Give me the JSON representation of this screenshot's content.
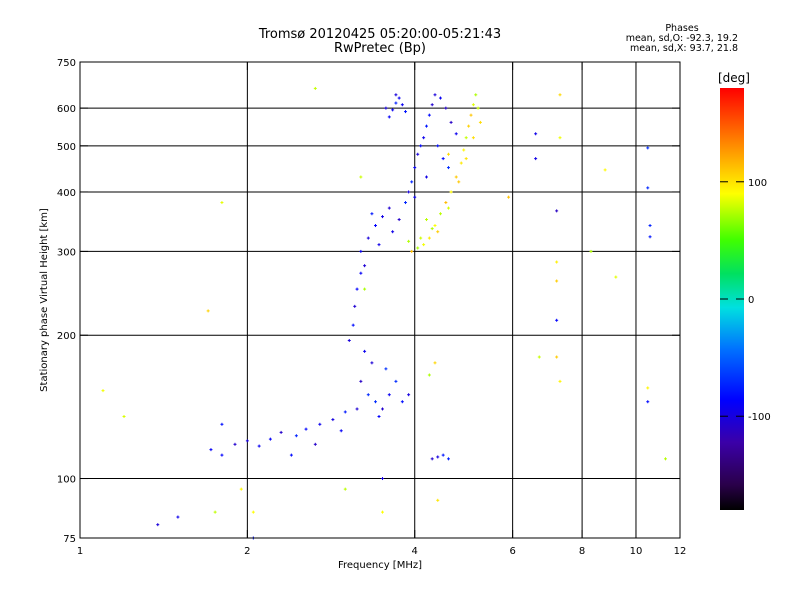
{
  "header": {
    "title": "Tromsø 20120425 05:20:00-05:21:43",
    "subtitle": "RwPretec (Bp)"
  },
  "phases": {
    "title": "Phases",
    "line_o": "mean, sd,O: -92.3, 19.2",
    "line_x": "mean, sd,X:  93.7, 21.8"
  },
  "colorbar": {
    "label": "[deg]",
    "ticks": [
      {
        "value": 100,
        "label": "100"
      },
      {
        "value": 0,
        "label": "0"
      },
      {
        "value": -100,
        "label": "-100"
      }
    ],
    "range": [
      -180,
      180
    ]
  },
  "chart_data": {
    "type": "scatter",
    "xlabel": "Frequency [MHz]",
    "ylabel": "Stationary phase Virtual Height [km]",
    "xscale": "log",
    "yscale": "log",
    "xlim": [
      1,
      12
    ],
    "ylim": [
      75,
      750
    ],
    "xticks": [
      {
        "value": 1,
        "label": "1"
      },
      {
        "value": 2,
        "label": "2"
      },
      {
        "value": 4,
        "label": "4"
      },
      {
        "value": 6,
        "label": "6"
      },
      {
        "value": 8,
        "label": "8"
      },
      {
        "value": 10,
        "label": "10"
      },
      {
        "value": 12,
        "label": "12"
      }
    ],
    "xgrid": [
      2,
      4,
      6,
      8,
      10
    ],
    "yticks": [
      {
        "value": 75,
        "label": "75"
      },
      {
        "value": 100,
        "label": "100"
      },
      {
        "value": 200,
        "label": "200"
      },
      {
        "value": 300,
        "label": "300"
      },
      {
        "value": 400,
        "label": "400"
      },
      {
        "value": 500,
        "label": "500"
      },
      {
        "value": 600,
        "label": "600"
      },
      {
        "value": 750,
        "label": "750"
      }
    ],
    "ygrid": [
      100,
      200,
      300,
      400,
      500,
      600
    ],
    "grid": true,
    "color_scale": "phase in degrees, rainbow from black (-180) through blue, cyan, green, yellow to red (+180)",
    "series": [
      {
        "mode": "O",
        "mean_phase": -92.3,
        "sd_phase": 19.2,
        "points": [
          {
            "x": 1.72,
            "y": 115
          },
          {
            "x": 1.8,
            "y": 112
          },
          {
            "x": 1.9,
            "y": 118
          },
          {
            "x": 2.0,
            "y": 120
          },
          {
            "x": 2.1,
            "y": 117
          },
          {
            "x": 2.2,
            "y": 121
          },
          {
            "x": 2.3,
            "y": 125
          },
          {
            "x": 2.45,
            "y": 123
          },
          {
            "x": 2.55,
            "y": 127
          },
          {
            "x": 2.7,
            "y": 130
          },
          {
            "x": 2.85,
            "y": 133
          },
          {
            "x": 3.0,
            "y": 138
          },
          {
            "x": 2.4,
            "y": 112
          },
          {
            "x": 2.65,
            "y": 118
          },
          {
            "x": 2.95,
            "y": 126
          },
          {
            "x": 3.05,
            "y": 195
          },
          {
            "x": 3.1,
            "y": 210
          },
          {
            "x": 3.12,
            "y": 230
          },
          {
            "x": 3.15,
            "y": 250
          },
          {
            "x": 3.2,
            "y": 270
          },
          {
            "x": 3.25,
            "y": 280
          },
          {
            "x": 3.2,
            "y": 160
          },
          {
            "x": 3.3,
            "y": 150
          },
          {
            "x": 3.4,
            "y": 145
          },
          {
            "x": 3.5,
            "y": 140
          },
          {
            "x": 3.6,
            "y": 150
          },
          {
            "x": 3.7,
            "y": 160
          },
          {
            "x": 3.35,
            "y": 175
          },
          {
            "x": 3.25,
            "y": 185
          },
          {
            "x": 3.45,
            "y": 135
          },
          {
            "x": 3.8,
            "y": 145
          },
          {
            "x": 3.9,
            "y": 150
          },
          {
            "x": 3.15,
            "y": 140
          },
          {
            "x": 3.55,
            "y": 170
          },
          {
            "x": 3.2,
            "y": 300
          },
          {
            "x": 3.3,
            "y": 320
          },
          {
            "x": 3.4,
            "y": 340
          },
          {
            "x": 3.5,
            "y": 355
          },
          {
            "x": 3.6,
            "y": 370
          },
          {
            "x": 3.35,
            "y": 360
          },
          {
            "x": 3.45,
            "y": 310
          },
          {
            "x": 3.65,
            "y": 330
          },
          {
            "x": 3.75,
            "y": 350
          },
          {
            "x": 3.85,
            "y": 380
          },
          {
            "x": 3.9,
            "y": 400
          },
          {
            "x": 3.95,
            "y": 420
          },
          {
            "x": 4.0,
            "y": 450
          },
          {
            "x": 4.05,
            "y": 480
          },
          {
            "x": 4.1,
            "y": 500
          },
          {
            "x": 4.15,
            "y": 520
          },
          {
            "x": 4.2,
            "y": 550
          },
          {
            "x": 4.25,
            "y": 580
          },
          {
            "x": 4.3,
            "y": 610
          },
          {
            "x": 4.35,
            "y": 640
          },
          {
            "x": 4.45,
            "y": 630
          },
          {
            "x": 4.55,
            "y": 600
          },
          {
            "x": 4.65,
            "y": 560
          },
          {
            "x": 4.75,
            "y": 530
          },
          {
            "x": 4.4,
            "y": 500
          },
          {
            "x": 4.5,
            "y": 470
          },
          {
            "x": 4.6,
            "y": 450
          },
          {
            "x": 4.2,
            "y": 430
          },
          {
            "x": 4.0,
            "y": 390
          },
          {
            "x": 3.6,
            "y": 575
          },
          {
            "x": 3.65,
            "y": 595
          },
          {
            "x": 3.7,
            "y": 615
          },
          {
            "x": 3.75,
            "y": 630
          },
          {
            "x": 3.8,
            "y": 610
          },
          {
            "x": 3.55,
            "y": 600
          },
          {
            "x": 3.7,
            "y": 640
          },
          {
            "x": 3.85,
            "y": 590
          },
          {
            "x": 4.3,
            "y": 110
          },
          {
            "x": 4.4,
            "y": 111
          },
          {
            "x": 4.5,
            "y": 112
          },
          {
            "x": 4.6,
            "y": 110
          },
          {
            "x": 10.5,
            "y": 495
          },
          {
            "x": 10.5,
            "y": 408
          },
          {
            "x": 10.6,
            "y": 340
          },
          {
            "x": 10.6,
            "y": 322
          },
          {
            "x": 10.5,
            "y": 145
          },
          {
            "x": 7.2,
            "y": 215
          },
          {
            "x": 7.2,
            "y": 365
          },
          {
            "x": 6.6,
            "y": 470
          },
          {
            "x": 6.6,
            "y": 530
          },
          {
            "x": 1.38,
            "y": 80
          },
          {
            "x": 1.5,
            "y": 83
          },
          {
            "x": 1.8,
            "y": 130
          },
          {
            "x": 2.05,
            "y": 75
          },
          {
            "x": 3.5,
            "y": 100
          }
        ]
      },
      {
        "mode": "X",
        "mean_phase": 93.7,
        "sd_phase": 21.8,
        "points": [
          {
            "x": 3.95,
            "y": 300
          },
          {
            "x": 4.05,
            "y": 305
          },
          {
            "x": 4.15,
            "y": 310
          },
          {
            "x": 4.25,
            "y": 320
          },
          {
            "x": 4.35,
            "y": 340
          },
          {
            "x": 4.45,
            "y": 360
          },
          {
            "x": 4.55,
            "y": 380
          },
          {
            "x": 4.65,
            "y": 400
          },
          {
            "x": 4.75,
            "y": 430
          },
          {
            "x": 4.85,
            "y": 460
          },
          {
            "x": 4.9,
            "y": 490
          },
          {
            "x": 4.95,
            "y": 520
          },
          {
            "x": 5.0,
            "y": 550
          },
          {
            "x": 5.05,
            "y": 580
          },
          {
            "x": 5.1,
            "y": 610
          },
          {
            "x": 5.15,
            "y": 640
          },
          {
            "x": 5.2,
            "y": 600
          },
          {
            "x": 5.25,
            "y": 560
          },
          {
            "x": 5.1,
            "y": 520
          },
          {
            "x": 4.95,
            "y": 470
          },
          {
            "x": 4.8,
            "y": 420
          },
          {
            "x": 4.6,
            "y": 370
          },
          {
            "x": 4.4,
            "y": 330
          },
          {
            "x": 4.1,
            "y": 320
          },
          {
            "x": 3.9,
            "y": 315
          },
          {
            "x": 4.2,
            "y": 350
          },
          {
            "x": 4.3,
            "y": 335
          },
          {
            "x": 7.2,
            "y": 285
          },
          {
            "x": 7.2,
            "y": 260
          },
          {
            "x": 7.2,
            "y": 180
          },
          {
            "x": 6.7,
            "y": 180
          },
          {
            "x": 7.3,
            "y": 160
          },
          {
            "x": 8.3,
            "y": 300
          },
          {
            "x": 9.2,
            "y": 265
          },
          {
            "x": 10.5,
            "y": 155
          },
          {
            "x": 11.3,
            "y": 110
          },
          {
            "x": 1.1,
            "y": 153
          },
          {
            "x": 1.2,
            "y": 135
          },
          {
            "x": 1.8,
            "y": 380
          },
          {
            "x": 1.7,
            "y": 225
          },
          {
            "x": 2.65,
            "y": 660
          },
          {
            "x": 3.2,
            "y": 430
          },
          {
            "x": 3.25,
            "y": 250
          },
          {
            "x": 4.4,
            "y": 90
          },
          {
            "x": 3.0,
            "y": 95
          },
          {
            "x": 3.5,
            "y": 85
          },
          {
            "x": 1.75,
            "y": 85
          },
          {
            "x": 1.95,
            "y": 95
          },
          {
            "x": 2.05,
            "y": 85
          },
          {
            "x": 4.25,
            "y": 165
          },
          {
            "x": 4.35,
            "y": 175
          },
          {
            "x": 8.8,
            "y": 445
          },
          {
            "x": 7.3,
            "y": 640
          },
          {
            "x": 7.3,
            "y": 520
          },
          {
            "x": 5.9,
            "y": 390
          },
          {
            "x": 4.6,
            "y": 480
          }
        ]
      }
    ]
  }
}
